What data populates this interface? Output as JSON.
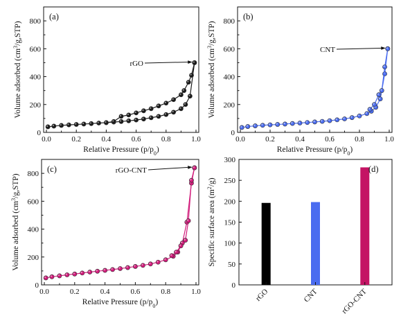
{
  "chart_data": [
    {
      "type": "line",
      "panel_label": "(a)",
      "xlabel": "Relative Pressure (p/p0)",
      "ylabel": "Volume adsorbed (cm3/g,STP)",
      "xlim": [
        0,
        1.0
      ],
      "ylim": [
        0,
        900
      ],
      "xticks": [
        0.0,
        0.2,
        0.4,
        0.6,
        0.8,
        1.0
      ],
      "yticks": [
        0,
        200,
        400,
        600,
        800
      ],
      "annotation": "rGO",
      "color": "#1a1a1a",
      "series": [
        {
          "x": [
            0.01,
            0.05,
            0.1,
            0.15,
            0.2,
            0.25,
            0.3,
            0.35,
            0.4,
            0.45,
            0.5,
            0.55,
            0.6,
            0.65,
            0.7,
            0.75,
            0.8,
            0.85,
            0.9,
            0.93,
            0.96,
            0.99
          ],
          "values": [
            40,
            45,
            50,
            54,
            57,
            60,
            63,
            67,
            70,
            74,
            78,
            83,
            89,
            96,
            105,
            115,
            128,
            145,
            170,
            200,
            260,
            500
          ]
        },
        {
          "x": [
            0.99,
            0.97,
            0.95,
            0.92,
            0.9,
            0.85,
            0.8,
            0.75,
            0.7,
            0.65,
            0.6,
            0.55,
            0.5,
            0.45,
            0.4
          ],
          "values": [
            500,
            410,
            360,
            300,
            270,
            235,
            210,
            190,
            170,
            155,
            140,
            125,
            115,
            78,
            70
          ]
        }
      ]
    },
    {
      "type": "line",
      "panel_label": "(b)",
      "xlabel": "Relative Pressure (p/p0)",
      "ylabel": "Volume adsorbed (cm3/g,STP)",
      "xlim": [
        0,
        1.0
      ],
      "ylim": [
        0,
        900
      ],
      "xticks": [
        0.0,
        0.2,
        0.4,
        0.6,
        0.8,
        1.0
      ],
      "yticks": [
        0,
        200,
        400,
        600,
        800
      ],
      "annotation": "CNT",
      "color": "#4a6cf0",
      "series": [
        {
          "x": [
            0.01,
            0.05,
            0.1,
            0.15,
            0.2,
            0.25,
            0.3,
            0.35,
            0.4,
            0.45,
            0.5,
            0.55,
            0.6,
            0.65,
            0.7,
            0.75,
            0.8,
            0.85,
            0.88,
            0.91,
            0.94,
            0.97,
            0.99
          ],
          "values": [
            35,
            42,
            47,
            51,
            54,
            57,
            60,
            64,
            67,
            71,
            75,
            79,
            84,
            90,
            97,
            106,
            118,
            135,
            152,
            180,
            240,
            420,
            600
          ]
        },
        {
          "x": [
            0.99,
            0.97,
            0.95,
            0.93,
            0.9,
            0.87
          ],
          "values": [
            600,
            470,
            300,
            270,
            200,
            165
          ]
        }
      ]
    },
    {
      "type": "line",
      "panel_label": "(c)",
      "xlabel": "Relative Pressure (p/p0)",
      "ylabel": "Volume adsorbed (cm3/g,STP)",
      "xlim": [
        0,
        1.0
      ],
      "ylim": [
        0,
        900
      ],
      "xticks": [
        0.0,
        0.2,
        0.4,
        0.6,
        0.8,
        1.0
      ],
      "yticks": [
        0,
        200,
        400,
        600,
        800
      ],
      "annotation": "rGO-CNT",
      "color": "#d11a7a",
      "series": [
        {
          "x": [
            0.01,
            0.05,
            0.1,
            0.15,
            0.2,
            0.25,
            0.3,
            0.35,
            0.4,
            0.45,
            0.5,
            0.55,
            0.6,
            0.65,
            0.7,
            0.75,
            0.8,
            0.85,
            0.88,
            0.91,
            0.94,
            0.97,
            0.99
          ],
          "values": [
            50,
            58,
            65,
            72,
            78,
            85,
            92,
            98,
            104,
            110,
            117,
            124,
            132,
            140,
            150,
            163,
            180,
            205,
            235,
            300,
            450,
            730,
            840
          ]
        },
        {
          "x": [
            0.99,
            0.97,
            0.95,
            0.93,
            0.9,
            0.87,
            0.84
          ],
          "values": [
            840,
            750,
            460,
            320,
            280,
            235,
            210
          ]
        }
      ]
    },
    {
      "type": "bar",
      "panel_label": "(d)",
      "categories": [
        "rGO",
        "CNT",
        "rGO-CNT"
      ],
      "values": [
        196,
        198,
        281
      ],
      "colors": [
        "#000000",
        "#4a6cf0",
        "#c41464"
      ],
      "ylabel": "Specific surface area (m2/g)",
      "ylim": [
        0,
        300
      ],
      "yticks": [
        0,
        50,
        100,
        150,
        200,
        250,
        300
      ]
    }
  ]
}
